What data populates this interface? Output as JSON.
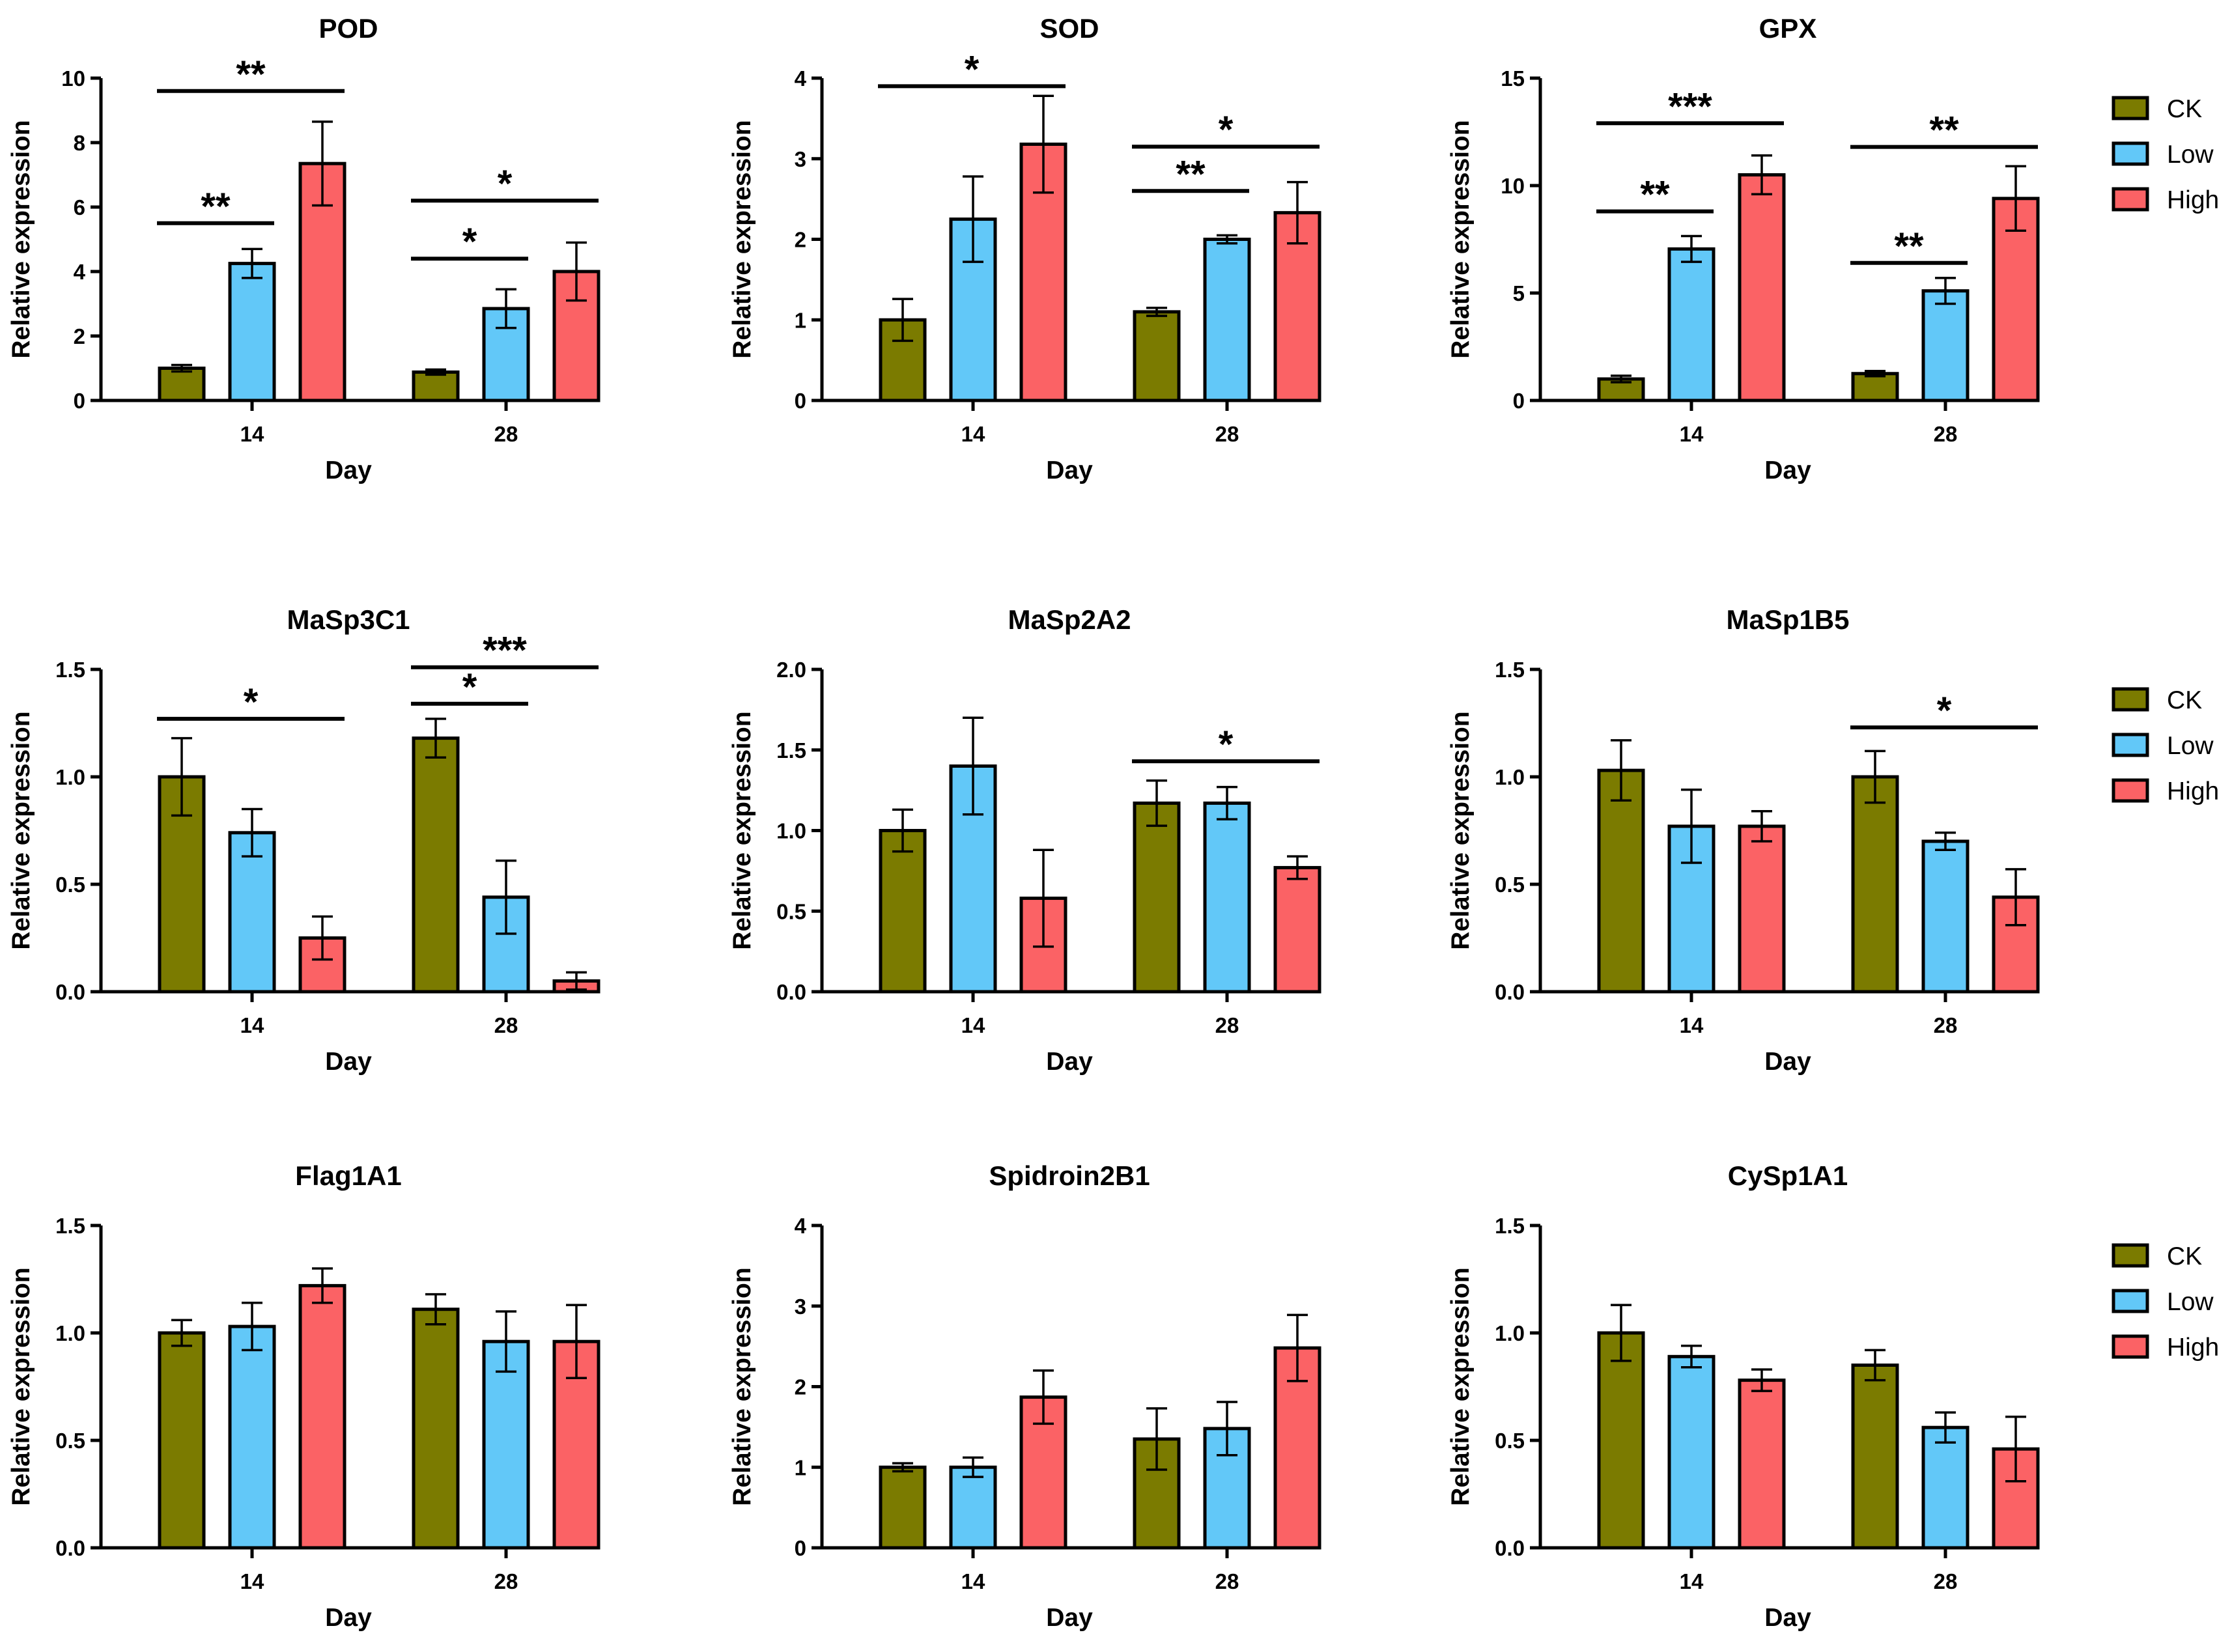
{
  "colors": {
    "CK": "#7b7b00",
    "Low": "#62c8f8",
    "High": "#fb6265",
    "line": "#000000"
  },
  "legend": {
    "entries": [
      "CK",
      "Low",
      "High"
    ],
    "placement": "right of each row"
  },
  "chart_data": [
    {
      "type": "bar",
      "title": "POD",
      "xlabel": "Day",
      "ylabel": "Relative expression",
      "categories": [
        "14",
        "28"
      ],
      "ylim": [
        0,
        10
      ],
      "yticks": [
        "0",
        "2",
        "4",
        "6",
        "8",
        "10"
      ],
      "series": [
        {
          "name": "CK",
          "values": [
            1.0,
            0.88
          ],
          "errors": [
            0.1,
            0.08
          ]
        },
        {
          "name": "Low",
          "values": [
            4.25,
            2.85
          ],
          "errors": [
            0.45,
            0.6
          ]
        },
        {
          "name": "High",
          "values": [
            7.35,
            4.0
          ],
          "errors": [
            1.3,
            0.9
          ]
        }
      ],
      "significance": [
        {
          "group": 0,
          "from": "CK",
          "to": "Low",
          "label": "**",
          "at": 5.5
        },
        {
          "group": 0,
          "from": "CK",
          "to": "High",
          "label": "**",
          "at": 9.6
        },
        {
          "group": 1,
          "from": "CK",
          "to": "Low",
          "label": "*",
          "at": 4.4
        },
        {
          "group": 1,
          "from": "CK",
          "to": "High",
          "label": "*",
          "at": 6.2
        }
      ]
    },
    {
      "type": "bar",
      "title": "SOD",
      "xlabel": "Day",
      "ylabel": "Relative expression",
      "categories": [
        "14",
        "28"
      ],
      "ylim": [
        0,
        4
      ],
      "yticks": [
        "0",
        "1",
        "2",
        "3",
        "4"
      ],
      "series": [
        {
          "name": "CK",
          "values": [
            1.0,
            1.1
          ],
          "errors": [
            0.26,
            0.05
          ]
        },
        {
          "name": "Low",
          "values": [
            2.25,
            2.0
          ],
          "errors": [
            0.53,
            0.05
          ]
        },
        {
          "name": "High",
          "values": [
            3.18,
            2.33
          ],
          "errors": [
            0.6,
            0.38
          ]
        }
      ],
      "significance": [
        {
          "group": 0,
          "from": "CK",
          "to": "High",
          "label": "*",
          "at": 3.9
        },
        {
          "group": 1,
          "from": "CK",
          "to": "Low",
          "label": "**",
          "at": 2.6
        },
        {
          "group": 1,
          "from": "CK",
          "to": "High",
          "label": "*",
          "at": 3.15
        }
      ]
    },
    {
      "type": "bar",
      "title": "GPX",
      "xlabel": "Day",
      "ylabel": "Relative expression",
      "categories": [
        "14",
        "28"
      ],
      "ylim": [
        0,
        15
      ],
      "yticks": [
        "0",
        "5",
        "10",
        "15"
      ],
      "series": [
        {
          "name": "CK",
          "values": [
            1.0,
            1.25
          ],
          "errors": [
            0.15,
            0.12
          ]
        },
        {
          "name": "Low",
          "values": [
            7.05,
            5.1
          ],
          "errors": [
            0.6,
            0.6
          ]
        },
        {
          "name": "High",
          "values": [
            10.5,
            9.4
          ],
          "errors": [
            0.9,
            1.5
          ]
        }
      ],
      "significance": [
        {
          "group": 0,
          "from": "CK",
          "to": "Low",
          "label": "**",
          "at": 8.8
        },
        {
          "group": 0,
          "from": "CK",
          "to": "High",
          "label": "***",
          "at": 12.9
        },
        {
          "group": 1,
          "from": "CK",
          "to": "Low",
          "label": "**",
          "at": 6.4
        },
        {
          "group": 1,
          "from": "CK",
          "to": "High",
          "label": "**",
          "at": 11.8
        }
      ]
    },
    {
      "type": "bar",
      "title": "MaSp3C1",
      "xlabel": "Day",
      "ylabel": "Relative expression",
      "categories": [
        "14",
        "28"
      ],
      "ylim": [
        0,
        1.5
      ],
      "yticks": [
        "0.0",
        "0.5",
        "1.0",
        "1.5"
      ],
      "series": [
        {
          "name": "CK",
          "values": [
            1.0,
            1.18
          ],
          "errors": [
            0.18,
            0.09
          ]
        },
        {
          "name": "Low",
          "values": [
            0.74,
            0.44
          ],
          "errors": [
            0.11,
            0.17
          ]
        },
        {
          "name": "High",
          "values": [
            0.25,
            0.05
          ],
          "errors": [
            0.1,
            0.04
          ]
        }
      ],
      "significance": [
        {
          "group": 0,
          "from": "CK",
          "to": "High",
          "label": "*",
          "at": 1.27
        },
        {
          "group": 1,
          "from": "CK",
          "to": "Low",
          "label": "*",
          "at": 1.34
        },
        {
          "group": 1,
          "from": "CK",
          "to": "High",
          "label": "***",
          "at": 1.51
        }
      ]
    },
    {
      "type": "bar",
      "title": "MaSp2A2",
      "xlabel": "Day",
      "ylabel": "Relative expression",
      "categories": [
        "14",
        "28"
      ],
      "ylim": [
        0,
        2.0
      ],
      "yticks": [
        "0.0",
        "0.5",
        "1.0",
        "1.5",
        "2.0"
      ],
      "series": [
        {
          "name": "CK",
          "values": [
            1.0,
            1.17
          ],
          "errors": [
            0.13,
            0.14
          ]
        },
        {
          "name": "Low",
          "values": [
            1.4,
            1.17
          ],
          "errors": [
            0.3,
            0.1
          ]
        },
        {
          "name": "High",
          "values": [
            0.58,
            0.77
          ],
          "errors": [
            0.3,
            0.07
          ]
        }
      ],
      "significance": [
        {
          "group": 1,
          "from": "CK",
          "to": "High",
          "label": "*",
          "at": 1.43
        }
      ]
    },
    {
      "type": "bar",
      "title": "MaSp1B5",
      "xlabel": "Day",
      "ylabel": "Relative expression",
      "categories": [
        "14",
        "28"
      ],
      "ylim": [
        0,
        1.5
      ],
      "yticks": [
        "0.0",
        "0.5",
        "1.0",
        "1.5"
      ],
      "series": [
        {
          "name": "CK",
          "values": [
            1.03,
            1.0
          ],
          "errors": [
            0.14,
            0.12
          ]
        },
        {
          "name": "Low",
          "values": [
            0.77,
            0.7
          ],
          "errors": [
            0.17,
            0.04
          ]
        },
        {
          "name": "High",
          "values": [
            0.77,
            0.44
          ],
          "errors": [
            0.07,
            0.13
          ]
        }
      ],
      "significance": [
        {
          "group": 1,
          "from": "CK",
          "to": "High",
          "label": "*",
          "at": 1.23
        }
      ]
    },
    {
      "type": "bar",
      "title": "Flag1A1",
      "xlabel": "Day",
      "ylabel": "Relative expression",
      "categories": [
        "14",
        "28"
      ],
      "ylim": [
        0,
        1.5
      ],
      "yticks": [
        "0.0",
        "0.5",
        "1.0",
        "1.5"
      ],
      "series": [
        {
          "name": "CK",
          "values": [
            1.0,
            1.11
          ],
          "errors": [
            0.06,
            0.07
          ]
        },
        {
          "name": "Low",
          "values": [
            1.03,
            0.96
          ],
          "errors": [
            0.11,
            0.14
          ]
        },
        {
          "name": "High",
          "values": [
            1.22,
            0.96
          ],
          "errors": [
            0.08,
            0.17
          ]
        }
      ],
      "significance": []
    },
    {
      "type": "bar",
      "title": "Spidroin2B1",
      "xlabel": "Day",
      "ylabel": "Relative expression",
      "categories": [
        "14",
        "28"
      ],
      "ylim": [
        0,
        4
      ],
      "yticks": [
        "0",
        "1",
        "2",
        "3",
        "4"
      ],
      "series": [
        {
          "name": "CK",
          "values": [
            1.0,
            1.35
          ],
          "errors": [
            0.05,
            0.38
          ]
        },
        {
          "name": "Low",
          "values": [
            1.0,
            1.48
          ],
          "errors": [
            0.12,
            0.33
          ]
        },
        {
          "name": "High",
          "values": [
            1.87,
            2.48
          ],
          "errors": [
            0.33,
            0.41
          ]
        }
      ],
      "significance": []
    },
    {
      "type": "bar",
      "title": "CySp1A1",
      "xlabel": "Day",
      "ylabel": "Relative expression",
      "categories": [
        "14",
        "28"
      ],
      "ylim": [
        0,
        1.5
      ],
      "yticks": [
        "0.0",
        "0.5",
        "1.0",
        "1.5"
      ],
      "series": [
        {
          "name": "CK",
          "values": [
            1.0,
            0.85
          ],
          "errors": [
            0.13,
            0.07
          ]
        },
        {
          "name": "Low",
          "values": [
            0.89,
            0.56
          ],
          "errors": [
            0.05,
            0.07
          ]
        },
        {
          "name": "High",
          "values": [
            0.78,
            0.46
          ],
          "errors": [
            0.05,
            0.15
          ]
        }
      ],
      "significance": []
    }
  ]
}
